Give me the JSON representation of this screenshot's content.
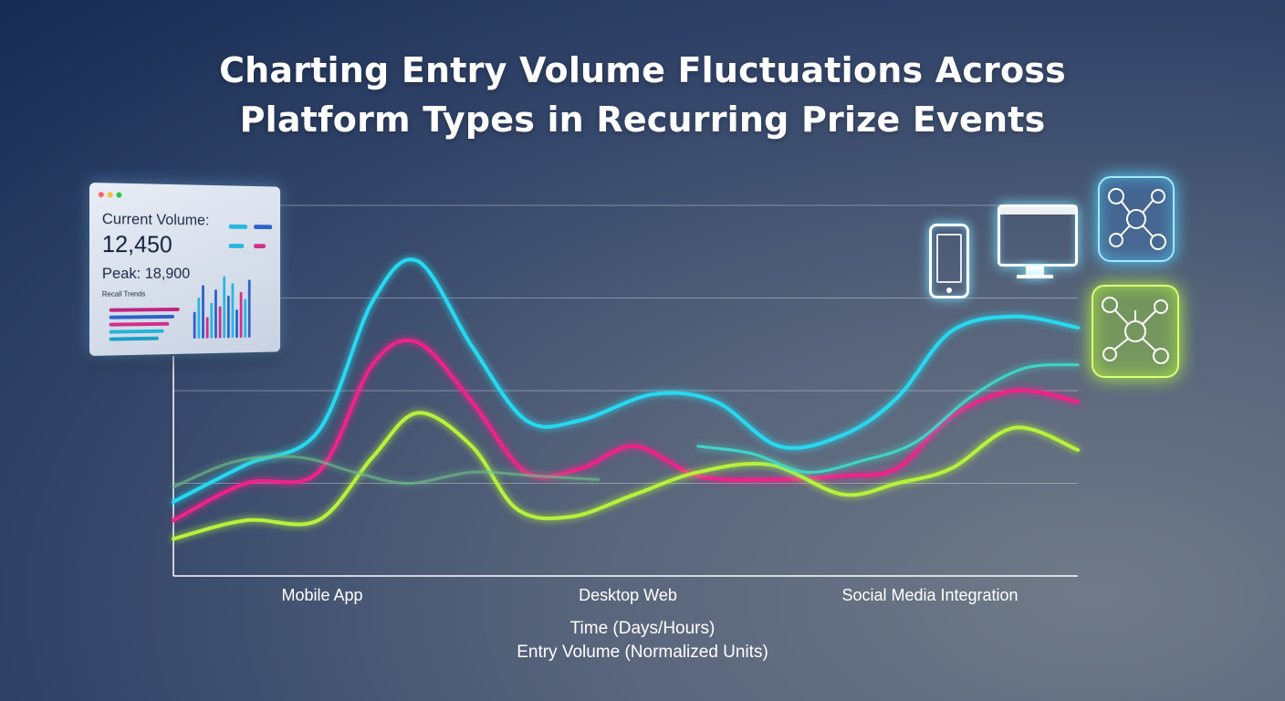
{
  "title_lines": [
    "Charting Entry Volume Fluctuations Across",
    "Platform Types in Recurring Prize Events"
  ],
  "colors": {
    "cyan": "#28d9f0",
    "magenta": "#f0208a",
    "lime": "#b6f23a",
    "teal": "#3fd4c8",
    "green_faded": "#6fbf8a"
  },
  "chart_data": {
    "type": "line",
    "title": "Charting Entry Volume Fluctuations Across Platform Types in Recurring Prize Events",
    "xlabel": "Time (Days/Hours)",
    "ylabel": "Entry Volume (Normalized Units)",
    "categories": [
      "Mobile App",
      "Desktop Web",
      "Social Media Integration"
    ],
    "x_range": [
      0,
      100
    ],
    "y_range": [
      0,
      100
    ],
    "grid": true,
    "series": [
      {
        "color": "#28d9f0",
        "x": [
          0,
          8,
          16,
          22,
          27,
          33,
          39,
          45,
          53,
          60,
          67,
          74,
          80,
          86,
          93,
          100
        ],
        "y": [
          20,
          30,
          39,
          74,
          85,
          62,
          42,
          42,
          49,
          47,
          35,
          38,
          48,
          66,
          70,
          67
        ]
      },
      {
        "color": "#f0208a",
        "x": [
          0,
          8,
          16,
          22,
          27,
          33,
          39,
          45,
          51,
          58,
          66,
          74,
          80,
          86,
          93,
          100
        ],
        "y": [
          15,
          25,
          28,
          57,
          63,
          47,
          28,
          29,
          35,
          27,
          26,
          27,
          29,
          43,
          50,
          47
        ]
      },
      {
        "color": "#b6f23a",
        "x": [
          0,
          8,
          16,
          22,
          27,
          33,
          38,
          44,
          51,
          58,
          66,
          74,
          80,
          86,
          93,
          100
        ],
        "y": [
          10,
          15,
          15,
          32,
          44,
          35,
          18,
          16,
          22,
          28,
          30,
          22,
          25,
          29,
          40,
          34
        ]
      },
      {
        "color": "#6fbf8a",
        "x": [
          0,
          7,
          14,
          20,
          26,
          33,
          40,
          47
        ],
        "y": [
          24,
          31,
          32,
          28,
          25,
          28,
          27,
          26
        ]
      },
      {
        "color": "#3fd4c8",
        "x": [
          58,
          64,
          70,
          76,
          82,
          88,
          94,
          100
        ],
        "y": [
          35,
          33,
          28,
          31,
          36,
          48,
          56,
          57
        ]
      }
    ]
  },
  "dashboard": {
    "label": "Current Volume:",
    "value": "12,450",
    "peak": "Peak: 18,900",
    "small_label": "Recall Trends"
  }
}
